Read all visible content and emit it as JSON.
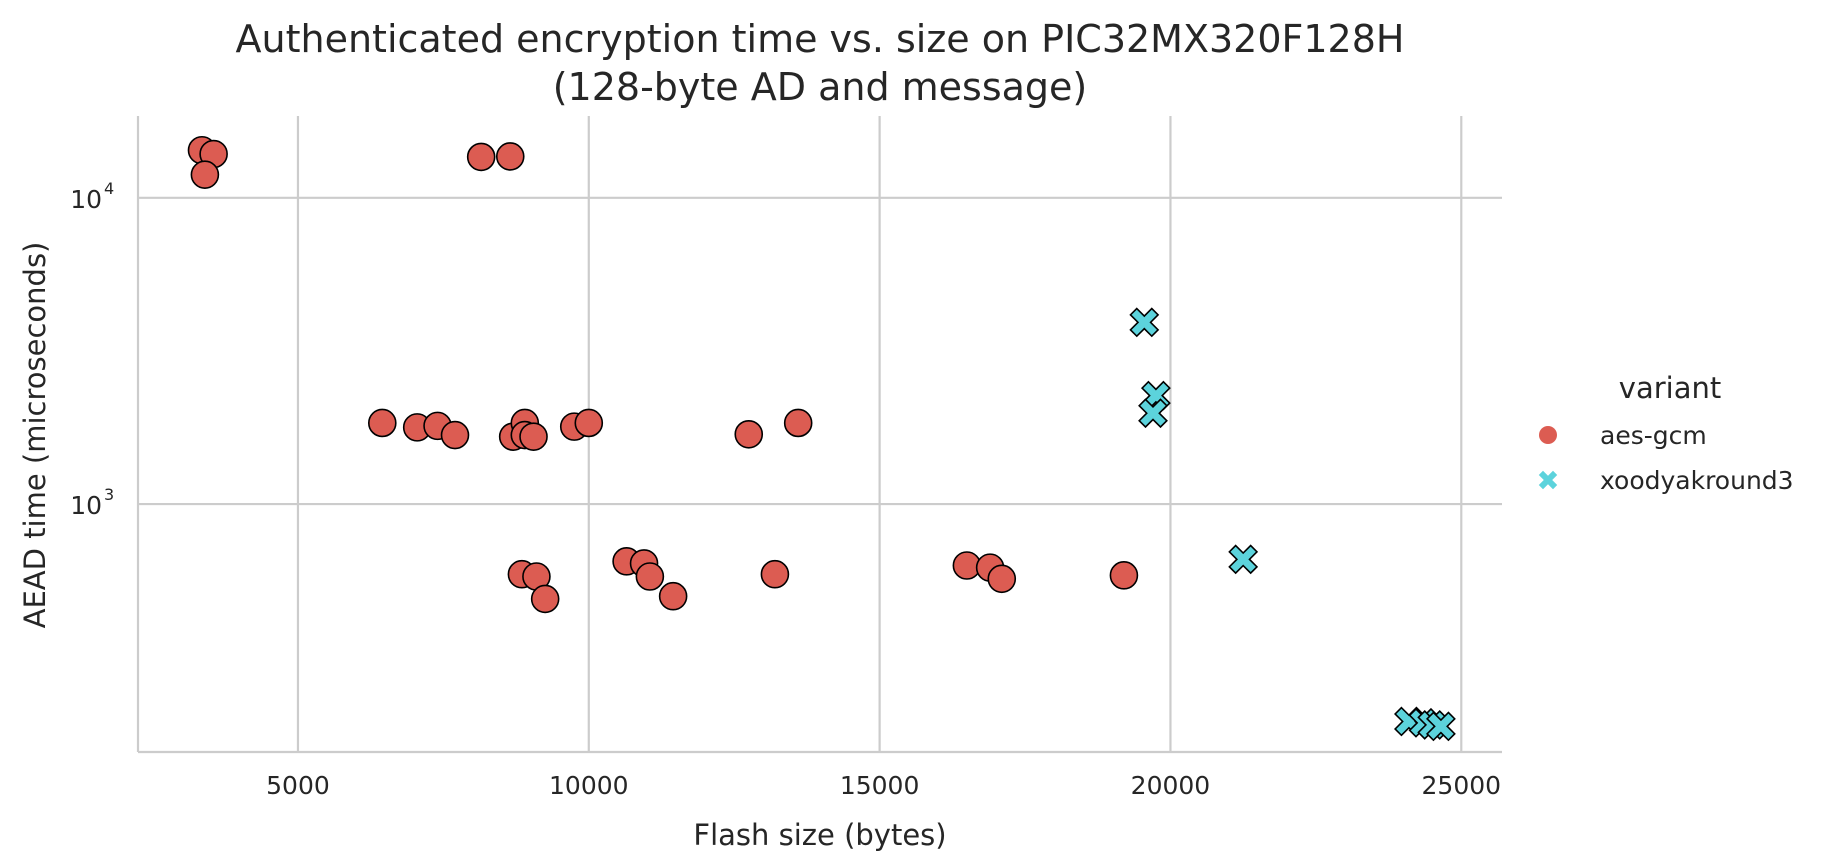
{
  "chart_data": {
    "type": "scatter",
    "title": "Authenticated encryption time vs. size on PIC32MX320F128H",
    "subtitle": "(128-byte AD and message)",
    "xlabel": "Flash size (bytes)",
    "ylabel": "AEAD time (microseconds)",
    "xlim": [
      2250,
      25700
    ],
    "ylim": [
      155,
      18500
    ],
    "yscale": "log",
    "grid": true,
    "x_ticks": [
      5000,
      10000,
      15000,
      20000,
      25000
    ],
    "x_tick_labels": [
      "5000",
      "10000",
      "15000",
      "20000",
      "25000"
    ],
    "y_ticks": [
      {
        "value": 10000,
        "base": "10",
        "exp": "4"
      },
      {
        "value": 1000,
        "base": "10",
        "exp": "3"
      }
    ],
    "legend": {
      "title": "variant",
      "position": "right"
    },
    "series": [
      {
        "name": "aes-gcm",
        "marker": "circle",
        "color": "#dc5c52",
        "points": [
          [
            3350,
            14300
          ],
          [
            3550,
            13900
          ],
          [
            3400,
            11900
          ],
          [
            8150,
            13600
          ],
          [
            8650,
            13650
          ],
          [
            6450,
            1840
          ],
          [
            7050,
            1780
          ],
          [
            7400,
            1800
          ],
          [
            7700,
            1680
          ],
          [
            8700,
            1660
          ],
          [
            8900,
            1840
          ],
          [
            8900,
            1680
          ],
          [
            9050,
            1660
          ],
          [
            9750,
            1790
          ],
          [
            10000,
            1840
          ],
          [
            12750,
            1690
          ],
          [
            13600,
            1840
          ],
          [
            8850,
            590
          ],
          [
            9100,
            580
          ],
          [
            9250,
            490
          ],
          [
            10650,
            650
          ],
          [
            10950,
            640
          ],
          [
            11050,
            580
          ],
          [
            11450,
            500
          ],
          [
            13200,
            590
          ],
          [
            16500,
            630
          ],
          [
            16900,
            620
          ],
          [
            17100,
            570
          ],
          [
            19200,
            585
          ]
        ]
      },
      {
        "name": "xoodyakround3",
        "marker": "x",
        "color": "#5cd3dc",
        "points": [
          [
            19550,
            3920
          ],
          [
            19750,
            2260
          ],
          [
            19700,
            1980
          ],
          [
            21250,
            660
          ],
          [
            24100,
            195
          ],
          [
            24350,
            193
          ],
          [
            24500,
            190
          ],
          [
            24650,
            188
          ]
        ]
      }
    ]
  }
}
